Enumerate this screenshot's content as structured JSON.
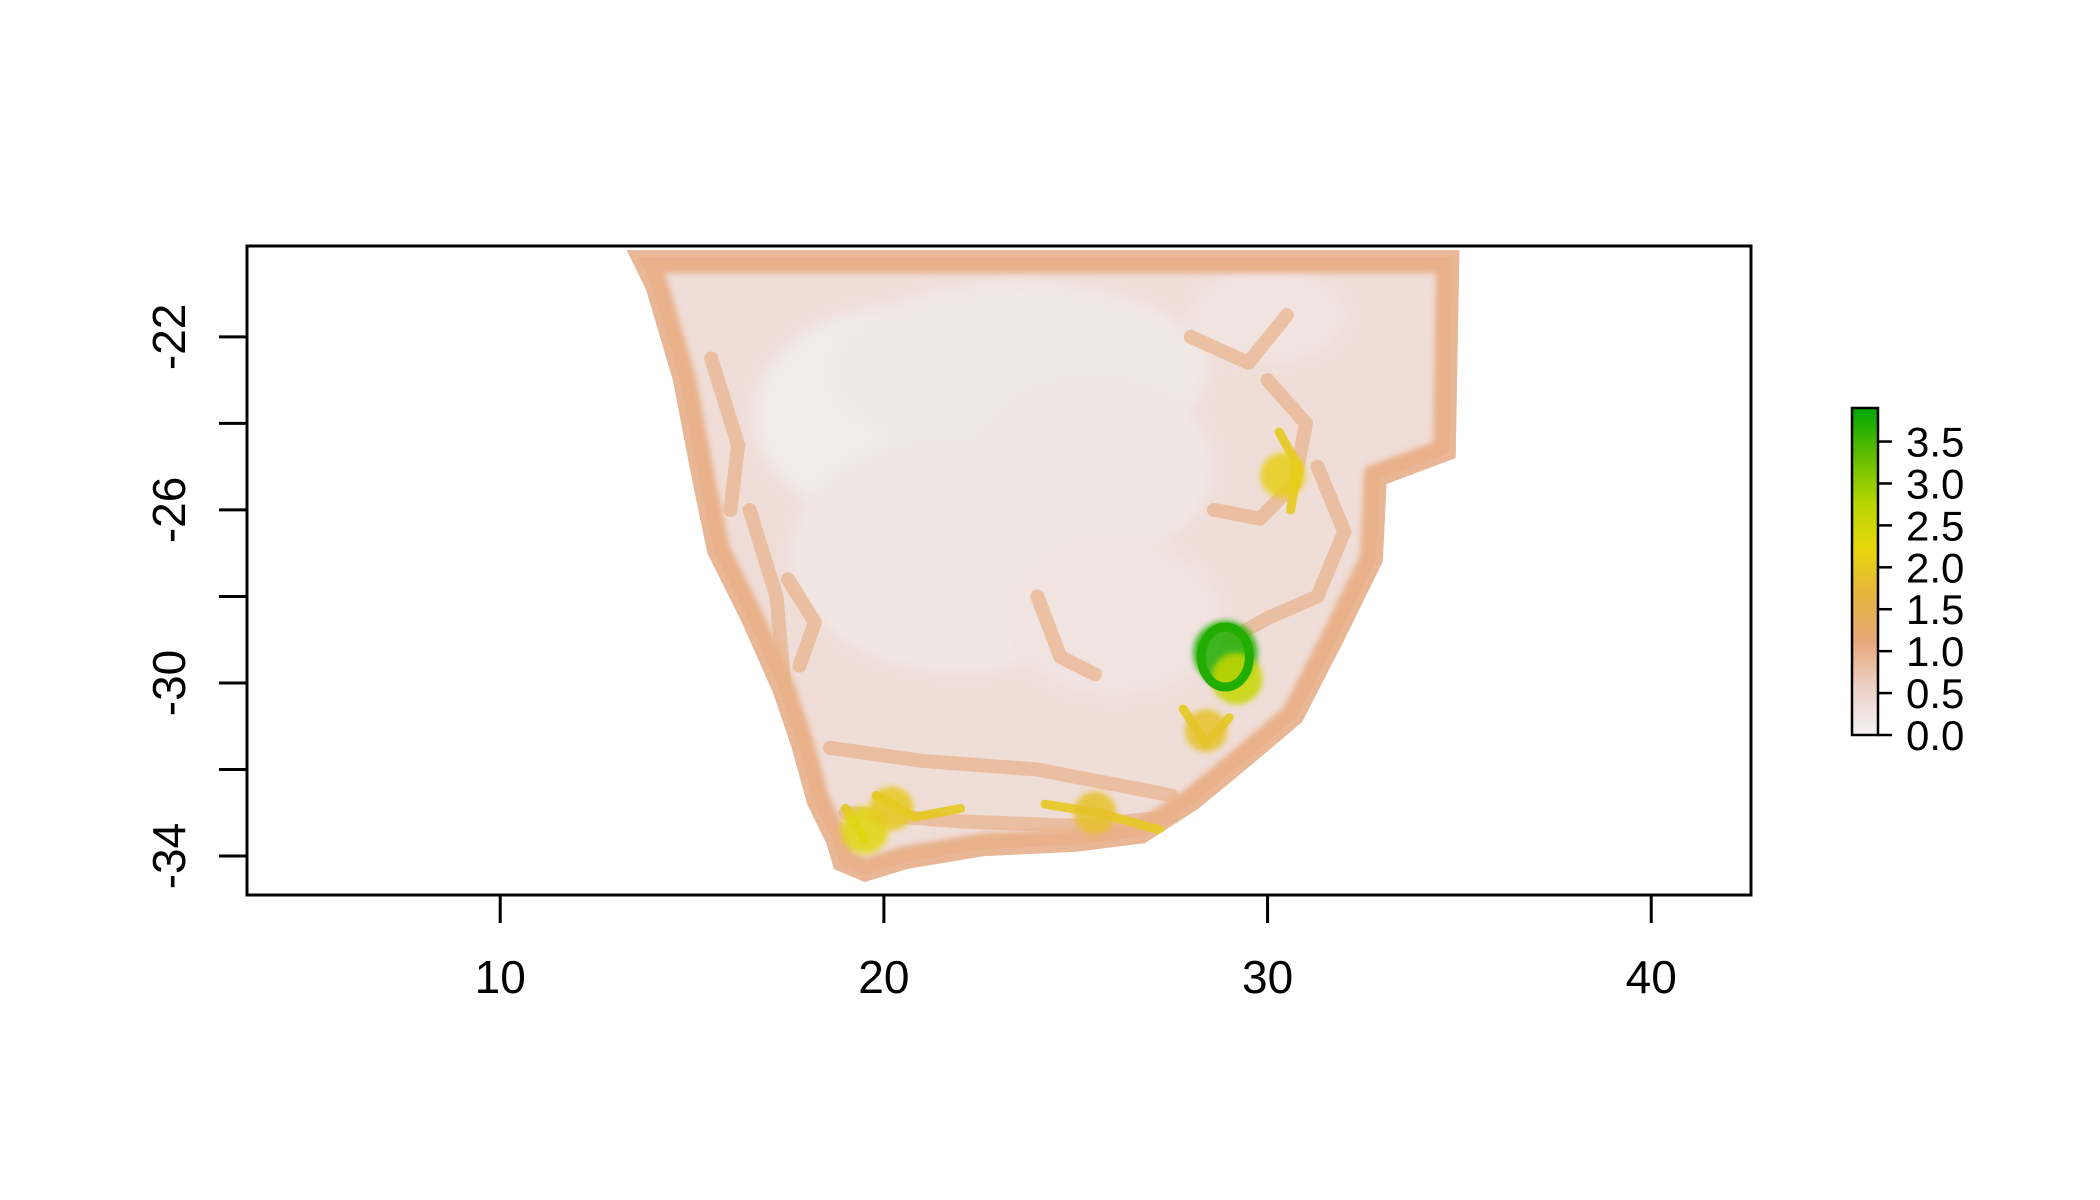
{
  "chart_data": {
    "type": "heatmap",
    "title": "",
    "xlabel": "",
    "ylabel": "",
    "xlim": [
      3.4,
      42.6
    ],
    "ylim": [
      -34.9,
      -19.9
    ],
    "x_ticks": [
      10,
      20,
      30,
      40
    ],
    "x_tick_labels": [
      "10",
      "20",
      "30",
      "40"
    ],
    "y_ticks": [
      -34,
      -32,
      -30,
      -28,
      -26,
      -24,
      -22
    ],
    "y_tick_labels": [
      "-34",
      "",
      "-30",
      "",
      "-26",
      "",
      "-22"
    ],
    "legend": {
      "position": "right",
      "min": 0.0,
      "max": 3.9,
      "ticks": [
        0.0,
        0.5,
        1.0,
        1.5,
        2.0,
        2.5,
        3.0,
        3.5
      ],
      "tick_labels": [
        "0.0",
        "0.5",
        "1.0",
        "1.5",
        "2.0",
        "2.5",
        "3.0",
        "3.5"
      ],
      "colors": [
        "#f2f2f2",
        "#edd1c9",
        "#e7a879",
        "#e4b43f",
        "#e8d70a",
        "#b5d600",
        "#5fbc00",
        "#00a600"
      ]
    },
    "hotspots": [
      {
        "lon": 28.9,
        "lat": -29.3,
        "value": 3.7
      },
      {
        "lon": 29.2,
        "lat": -29.9,
        "value": 2.6
      },
      {
        "lon": 30.4,
        "lat": -25.2,
        "value": 2.1
      },
      {
        "lon": 19.5,
        "lat": -33.4,
        "value": 2.3
      },
      {
        "lon": 20.2,
        "lat": -32.9,
        "value": 2.0
      },
      {
        "lon": 25.5,
        "lat": -33.0,
        "value": 1.9
      },
      {
        "lon": 28.4,
        "lat": -31.1,
        "value": 1.9
      }
    ],
    "region_polygon": [
      [
        13.3,
        -20.0
      ],
      [
        35.0,
        -20.0
      ],
      [
        34.9,
        -24.8
      ],
      [
        33.1,
        -25.4
      ],
      [
        33.0,
        -27.2
      ],
      [
        32.0,
        -29.0
      ],
      [
        30.9,
        -30.9
      ],
      [
        29.7,
        -31.8
      ],
      [
        28.2,
        -32.9
      ],
      [
        26.8,
        -33.7
      ],
      [
        25.0,
        -33.9
      ],
      [
        22.6,
        -34.0
      ],
      [
        20.6,
        -34.3
      ],
      [
        19.5,
        -34.6
      ],
      [
        18.7,
        -34.3
      ],
      [
        18.5,
        -33.7
      ],
      [
        18.0,
        -32.8
      ],
      [
        17.6,
        -31.5
      ],
      [
        17.1,
        -30.2
      ],
      [
        16.3,
        -28.6
      ],
      [
        15.4,
        -27.0
      ],
      [
        15.0,
        -25.3
      ],
      [
        14.5,
        -23.0
      ],
      [
        13.8,
        -20.9
      ]
    ]
  }
}
